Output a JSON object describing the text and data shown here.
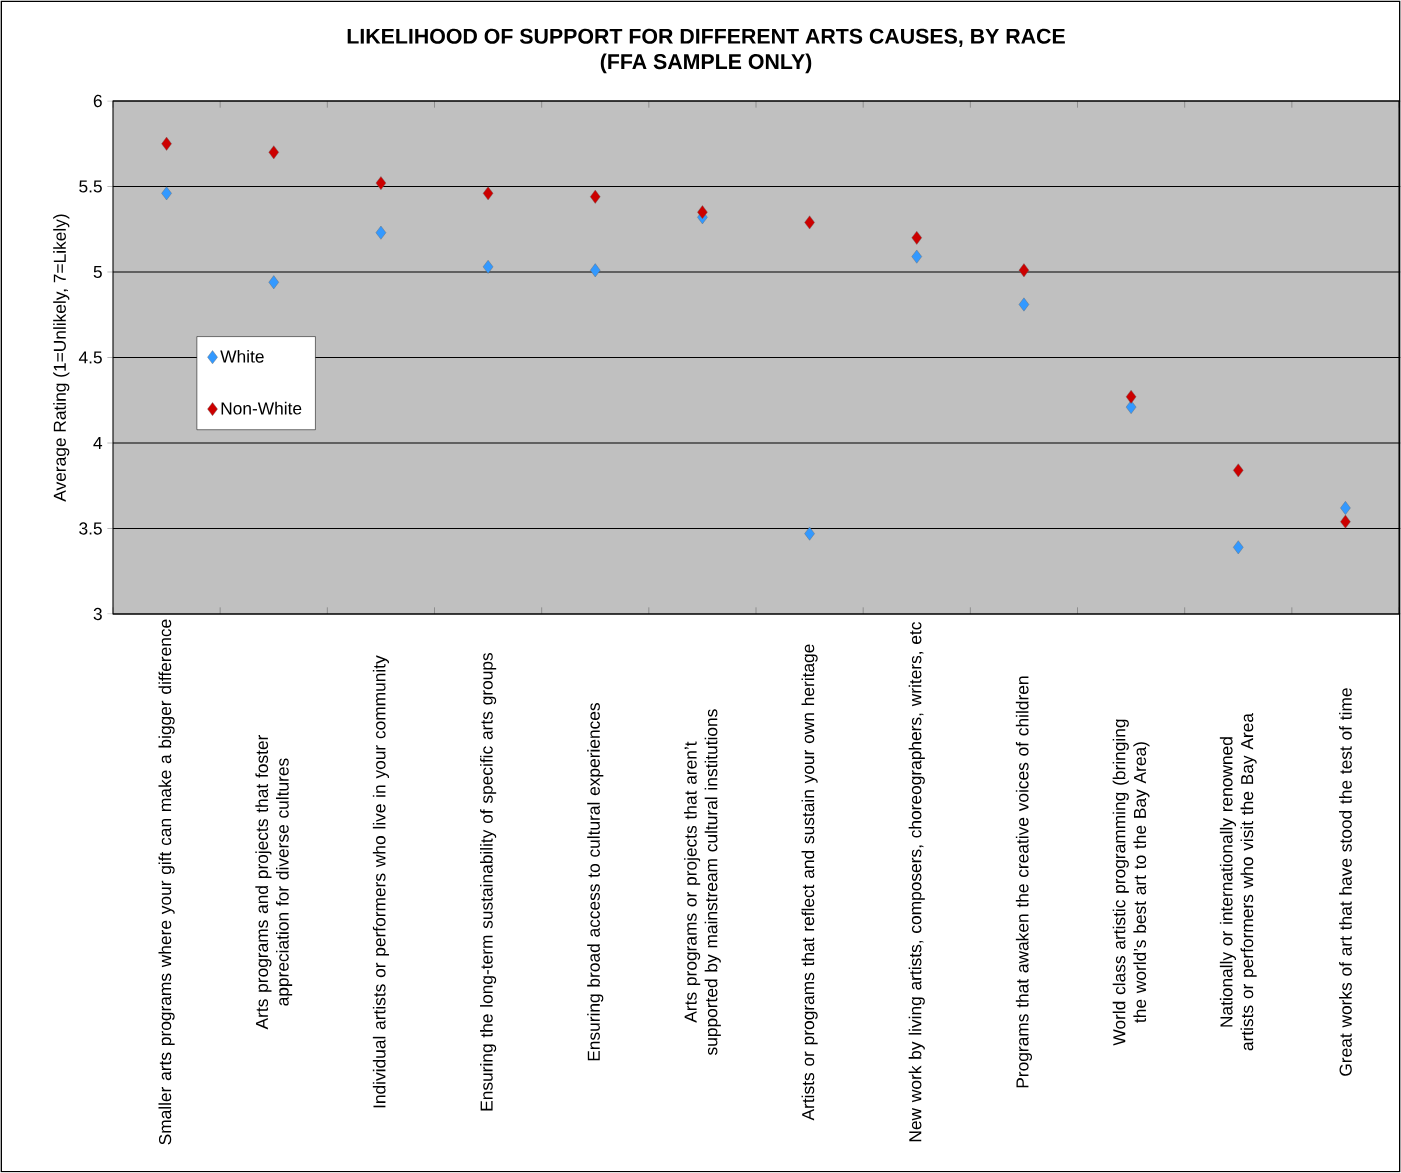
{
  "chart_data": {
    "type": "scatter",
    "title": "LIKELIHOOD OF SUPPORT FOR DIFFERENT ARTS CAUSES, BY RACE",
    "subtitle": "(FFA SAMPLE ONLY)",
    "ylabel": "Average Rating (1=Unlikely, 7=Likely)",
    "categories": [
      "Smaller arts programs where your gift can make a bigger difference",
      "Arts programs and projects that foster appreciation for diverse cultures",
      "Individual artists or performers who live in your community",
      "Ensuring the long-term sustainability of specific arts groups",
      "Ensuring broad access to cultural experiences",
      "Arts programs or projects that aren’t supported by mainstream cultural institutions",
      "Artists or programs that reflect and sustain your own heritage",
      "New work by living artists, composers, choreographers, writers, etc",
      "Programs that awaken the creative voices of children",
      "World class artistic programming (bringing the world’s best art to the Bay Area)",
      "Nationally or internationally renowned artists or performers who visit the Bay Area",
      "Great works of art that have stood the test of time"
    ],
    "series": [
      {
        "name": "White",
        "color": "#3399ff",
        "values": [
          5.46,
          4.94,
          5.23,
          5.03,
          5.01,
          5.32,
          3.47,
          5.09,
          4.81,
          4.21,
          3.39,
          3.62
        ]
      },
      {
        "name": "Non-White",
        "color": "#cc0000",
        "values": [
          5.75,
          5.7,
          5.52,
          5.46,
          5.44,
          5.35,
          5.29,
          5.2,
          5.01,
          4.27,
          3.84,
          3.54
        ]
      }
    ],
    "ylim": [
      3,
      6
    ],
    "yticks": [
      3,
      3.5,
      4,
      4.5,
      5,
      5.5,
      6
    ],
    "grid": "y",
    "legend": "left",
    "marker": "diamond"
  }
}
